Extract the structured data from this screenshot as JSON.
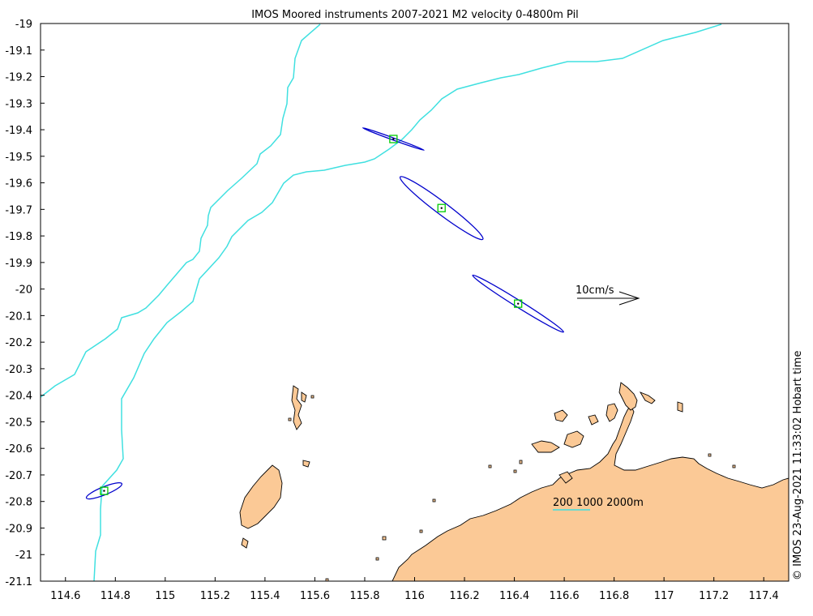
{
  "title": "IMOS Moored instruments 2007-2021 M2 velocity 0-4800m Pil",
  "copyright": "© IMOS 23-Aug-2021 11:33:02 Hobart time",
  "scale_arrow_label": "10cm/s",
  "isobath_legend_label": "200 1000 2000m",
  "colors": {
    "land": "#fbc996",
    "isobath": "#40e0e0",
    "ellipse": "#0000cc",
    "mooring_marker": "#00cc00"
  },
  "chart_data": {
    "type": "map",
    "title": "IMOS Moored instruments 2007-2021 M2 velocity 0-4800m Pil",
    "xlim": [
      114.5,
      117.5
    ],
    "ylim": [
      -21.1,
      -19.0
    ],
    "xticks": [
      "114.6",
      "114.8",
      "115",
      "115.2",
      "115.4",
      "115.6",
      "115.8",
      "116",
      "116.2",
      "116.4",
      "116.6",
      "116.8",
      "117",
      "117.2",
      "117.4"
    ],
    "yticks": [
      "-19",
      "-19.1",
      "-19.2",
      "-19.3",
      "-19.4",
      "-19.5",
      "-19.6",
      "-19.7",
      "-19.8",
      "-19.9",
      "-20",
      "-20.1",
      "-20.2",
      "-20.3",
      "-20.4",
      "-20.5",
      "-20.6",
      "-20.7",
      "-20.8",
      "-20.9",
      "-21",
      "-21.1"
    ],
    "moorings": [
      {
        "lon": 115.915,
        "lat": -19.435
      },
      {
        "lon": 116.108,
        "lat": -19.695
      },
      {
        "lon": 116.415,
        "lat": -20.055
      },
      {
        "lon": 114.755,
        "lat": -20.76
      }
    ],
    "ellipses": [
      {
        "lon": 115.915,
        "lat": -19.435,
        "semi_major_cm_s": 5.3,
        "semi_minor_cm_s": 0.17,
        "orientation_deg": -20
      },
      {
        "lon": 116.108,
        "lat": -19.695,
        "semi_major_cm_s": 8.4,
        "semi_minor_cm_s": 1.0,
        "orientation_deg": -37
      },
      {
        "lon": 116.415,
        "lat": -20.055,
        "semi_major_cm_s": 8.7,
        "semi_minor_cm_s": 0.55,
        "orientation_deg": -32
      },
      {
        "lon": 114.755,
        "lat": -20.76,
        "semi_major_cm_s": 3.1,
        "semi_minor_cm_s": 0.65,
        "orientation_deg": 22
      }
    ],
    "scale_arrow_cm_s": 10,
    "isobaths_m": [
      200,
      1000,
      2000
    ]
  }
}
